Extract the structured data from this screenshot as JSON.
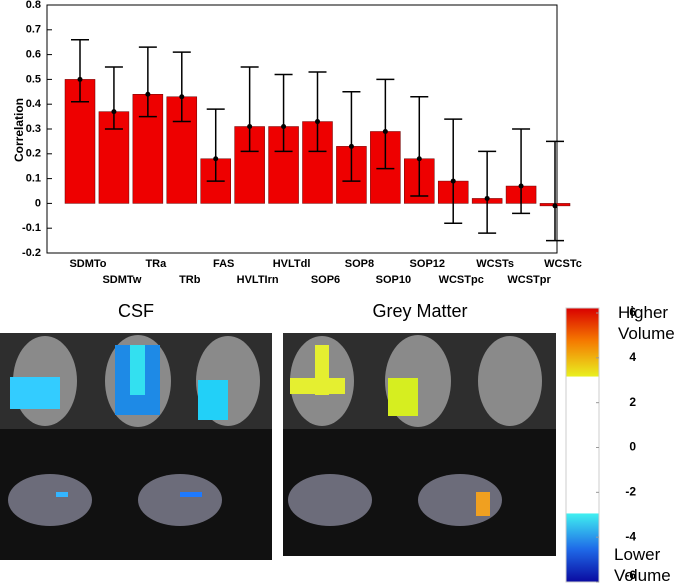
{
  "chart_data": {
    "type": "bar",
    "y_label": "Correlation",
    "categories": [
      "SDMTo",
      "SDMTw",
      "TRa",
      "TRb",
      "FAS",
      "HVLTIrn",
      "HVLTdl",
      "SOP6",
      "SOP8",
      "SOP10",
      "SOP12",
      "WCSTpc",
      "WCSTs",
      "WCSTpr",
      "WCSTc"
    ],
    "values": [
      0.5,
      0.37,
      0.44,
      0.43,
      0.18,
      0.31,
      0.31,
      0.33,
      0.23,
      0.29,
      0.18,
      0.09,
      0.02,
      0.07,
      -0.01
    ],
    "ci_low": [
      0.41,
      0.3,
      0.35,
      0.33,
      0.09,
      0.21,
      0.21,
      0.21,
      0.09,
      0.14,
      0.03,
      -0.08,
      -0.12,
      -0.04,
      -0.15
    ],
    "ci_high": [
      0.66,
      0.55,
      0.63,
      0.61,
      0.38,
      0.55,
      0.52,
      0.53,
      0.45,
      0.5,
      0.43,
      0.34,
      0.21,
      0.3,
      0.25
    ],
    "color": "#ee0000",
    "ylim": [
      -0.2,
      0.8
    ],
    "yticks": [
      -0.2,
      -0.1,
      0,
      0.1,
      0.2,
      0.3,
      0.4,
      0.5,
      0.6,
      0.7,
      0.8
    ]
  },
  "panels": [
    {
      "title": "CSF"
    },
    {
      "title": "Grey Matter"
    }
  ],
  "colorbar": {
    "lim": [
      -6,
      6
    ],
    "ticks": [
      6,
      4,
      2,
      0,
      -2,
      -4,
      -6
    ],
    "top_label": "Higher Volume",
    "bottom_label": "Lower Volume"
  }
}
